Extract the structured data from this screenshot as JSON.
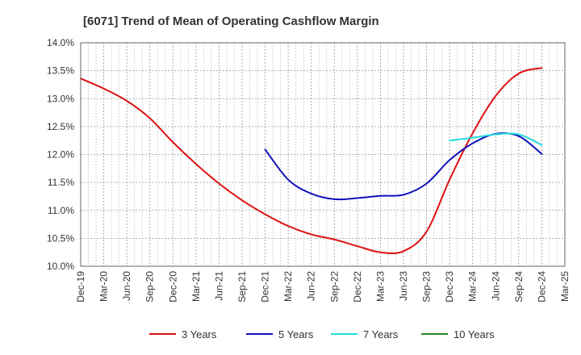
{
  "chart_data": {
    "type": "line",
    "title": "[6071]  Trend of Mean of Operating Cashflow Margin",
    "xlabel": "",
    "ylabel": "",
    "y_unit": "%",
    "ylim": [
      10.0,
      14.0
    ],
    "y_ticks": [
      10.0,
      10.5,
      11.0,
      11.5,
      12.0,
      12.5,
      13.0,
      13.5,
      14.0
    ],
    "y_tick_labels": [
      "10.0%",
      "10.5%",
      "11.0%",
      "11.5%",
      "12.0%",
      "12.5%",
      "13.0%",
      "13.5%",
      "14.0%"
    ],
    "x_tick_labels": [
      "Dec-19",
      "Mar-20",
      "Jun-20",
      "Sep-20",
      "Dec-20",
      "Mar-21",
      "Jun-21",
      "Sep-21",
      "Dec-21",
      "Mar-22",
      "Jun-22",
      "Sep-22",
      "Dec-22",
      "Mar-23",
      "Jun-23",
      "Sep-23",
      "Dec-23",
      "Mar-24",
      "Jun-24",
      "Sep-24",
      "Dec-24",
      "Mar-25"
    ],
    "grid": true,
    "legend_position": "bottom",
    "series": [
      {
        "name": "3 Years",
        "color": "#dd1111",
        "points": [
          [
            "Dec-19",
            13.36
          ],
          [
            "Mar-20",
            13.18
          ],
          [
            "Jun-20",
            12.96
          ],
          [
            "Sep-20",
            12.65
          ],
          [
            "Dec-20",
            12.22
          ],
          [
            "Mar-21",
            11.83
          ],
          [
            "Jun-21",
            11.48
          ],
          [
            "Sep-21",
            11.18
          ],
          [
            "Dec-21",
            10.93
          ],
          [
            "Mar-22",
            10.72
          ],
          [
            "Jun-22",
            10.57
          ],
          [
            "Sep-22",
            10.48
          ],
          [
            "Dec-22",
            10.36
          ],
          [
            "Mar-23",
            10.25
          ],
          [
            "Jun-23",
            10.27
          ],
          [
            "Sep-23",
            10.62
          ],
          [
            "Dec-23",
            11.55
          ],
          [
            "Mar-24",
            12.38
          ],
          [
            "Jun-24",
            13.05
          ],
          [
            "Sep-24",
            13.45
          ],
          [
            "Dec-24",
            13.55
          ]
        ]
      },
      {
        "name": "5 Years",
        "color": "#1111bb",
        "points": [
          [
            "Dec-21",
            12.09
          ],
          [
            "Mar-22",
            11.55
          ],
          [
            "Jun-22",
            11.3
          ],
          [
            "Sep-22",
            11.2
          ],
          [
            "Dec-22",
            11.22
          ],
          [
            "Mar-23",
            11.26
          ],
          [
            "Jun-23",
            11.28
          ],
          [
            "Sep-23",
            11.48
          ],
          [
            "Dec-23",
            11.9
          ],
          [
            "Mar-24",
            12.2
          ],
          [
            "Jun-24",
            12.37
          ],
          [
            "Sep-24",
            12.33
          ],
          [
            "Dec-24",
            12.01
          ]
        ]
      },
      {
        "name": "7 Years",
        "color": "#22dddd",
        "points": [
          [
            "Dec-23",
            12.25
          ],
          [
            "Mar-24",
            12.3
          ],
          [
            "Jun-24",
            12.36
          ],
          [
            "Sep-24",
            12.36
          ],
          [
            "Dec-24",
            12.17
          ]
        ]
      },
      {
        "name": "10 Years",
        "color": "#228822",
        "points": []
      }
    ]
  }
}
